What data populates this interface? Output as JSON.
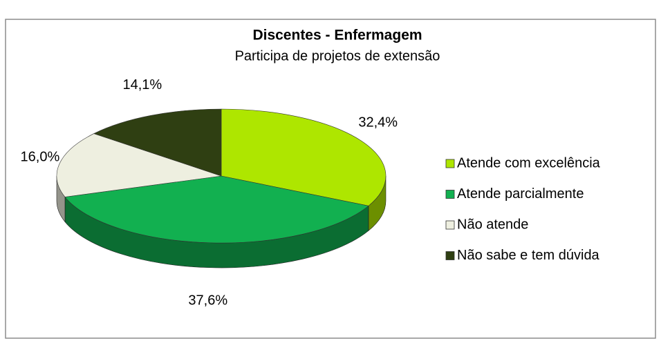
{
  "chart_data": {
    "type": "pie3d",
    "title": "Discentes - Enfermagem",
    "subtitle": "Participa de projetos de extensão",
    "categories": [
      "Atende com excelência",
      "Atende parcialmente",
      "Não atende",
      "Não sabe e tem dúvida"
    ],
    "values": [
      32.4,
      37.6,
      16.0,
      14.1
    ],
    "value_labels": [
      "32,4%",
      "37,6%",
      "16,0%",
      "14,1%"
    ],
    "colors": [
      "#aee600",
      "#12b050",
      "#eeefe0",
      "#2f3f12"
    ],
    "legend": "right"
  }
}
